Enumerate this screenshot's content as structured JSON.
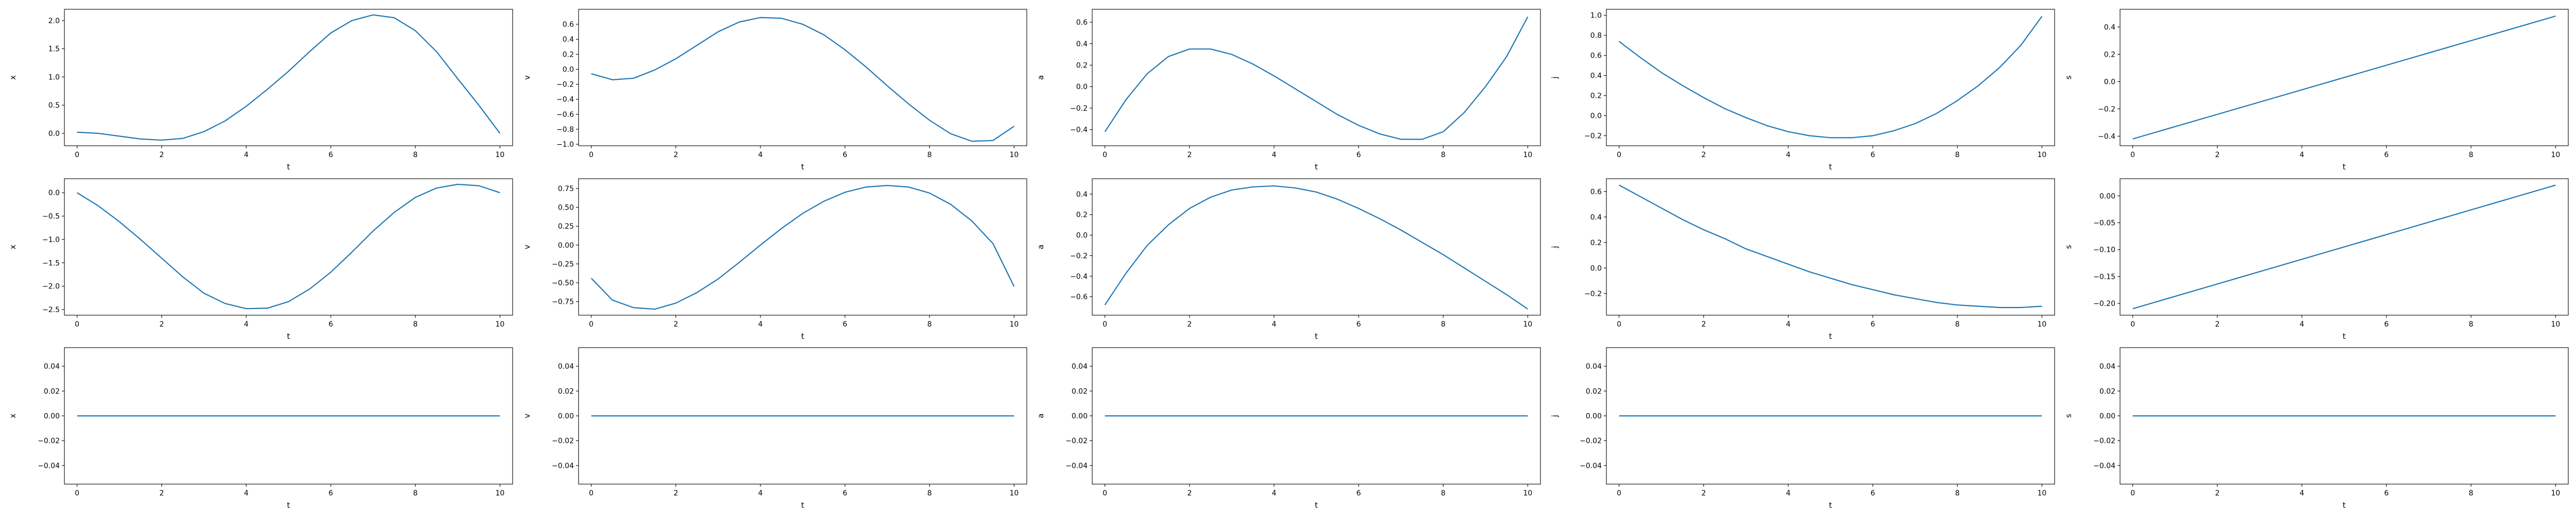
{
  "figure": {
    "background": "#ffffff",
    "line_color": "#1f77b4",
    "spine_color": "#000000"
  },
  "chart_data": [
    {
      "type": "line",
      "row": 1,
      "col": 1,
      "xlabel": "t",
      "ylabel": "x",
      "grid": false,
      "x": [
        0,
        0.5,
        1,
        1.5,
        2,
        2.5,
        3,
        3.5,
        4,
        4.5,
        5,
        5.5,
        6,
        6.5,
        7,
        7.5,
        8,
        8.5,
        9,
        9.5,
        10
      ],
      "y": [
        0.02,
        0.0,
        -0.05,
        -0.1,
        -0.12,
        -0.09,
        0.03,
        0.22,
        0.48,
        0.78,
        1.1,
        1.45,
        1.78,
        2.0,
        2.1,
        2.05,
        1.82,
        1.45,
        0.97,
        0.5,
        0.0
      ],
      "xlim": [
        -0.3,
        10.3
      ],
      "ylim": [
        -0.22,
        2.2
      ],
      "xticks": [
        0,
        2,
        4,
        6,
        8,
        10
      ],
      "xtick_labels": [
        "0",
        "2",
        "4",
        "6",
        "8",
        "10"
      ],
      "yticks": [
        0,
        0.5,
        1,
        1.5,
        2
      ],
      "ytick_labels": [
        "0.0",
        "0.5",
        "1.0",
        "1.5",
        "2.0"
      ]
    },
    {
      "type": "line",
      "row": 1,
      "col": 2,
      "xlabel": "t",
      "ylabel": "v",
      "grid": false,
      "x": [
        0,
        0.5,
        1,
        1.5,
        2,
        2.5,
        3,
        3.5,
        4,
        4.5,
        5,
        5.5,
        6,
        6.5,
        7,
        7.5,
        8,
        8.5,
        9,
        9.5,
        10
      ],
      "y": [
        -0.06,
        -0.14,
        -0.12,
        -0.01,
        0.14,
        0.32,
        0.5,
        0.63,
        0.69,
        0.68,
        0.6,
        0.46,
        0.26,
        0.03,
        -0.22,
        -0.46,
        -0.68,
        -0.86,
        -0.96,
        -0.95,
        -0.76
      ],
      "xlim": [
        -0.3,
        10.3
      ],
      "ylim": [
        -1.02,
        0.8
      ],
      "xticks": [
        0,
        2,
        4,
        6,
        8,
        10
      ],
      "xtick_labels": [
        "0",
        "2",
        "4",
        "6",
        "8",
        "10"
      ],
      "yticks": [
        -1.0,
        -0.8,
        -0.6,
        -0.4,
        -0.2,
        0.0,
        0.2,
        0.4,
        0.6
      ],
      "ytick_labels": [
        "−1.0",
        "−0.8",
        "−0.6",
        "−0.4",
        "−0.2",
        "0.0",
        "0.2",
        "0.4",
        "0.6"
      ]
    },
    {
      "type": "line",
      "row": 1,
      "col": 3,
      "xlabel": "t",
      "ylabel": "a",
      "grid": false,
      "x": [
        0,
        0.5,
        1,
        1.5,
        2,
        2.5,
        3,
        3.5,
        4,
        4.5,
        5,
        5.5,
        6,
        6.5,
        7,
        7.5,
        8,
        8.5,
        9,
        9.5,
        10
      ],
      "y": [
        -0.42,
        -0.12,
        0.12,
        0.28,
        0.35,
        0.35,
        0.3,
        0.21,
        0.1,
        -0.02,
        -0.14,
        -0.26,
        -0.36,
        -0.44,
        -0.49,
        -0.49,
        -0.42,
        -0.24,
        0.0,
        0.28,
        0.65
      ],
      "xlim": [
        -0.3,
        10.3
      ],
      "ylim": [
        -0.55,
        0.72
      ],
      "xticks": [
        0,
        2,
        4,
        6,
        8,
        10
      ],
      "xtick_labels": [
        "0",
        "2",
        "4",
        "6",
        "8",
        "10"
      ],
      "yticks": [
        -0.4,
        -0.2,
        0.0,
        0.2,
        0.4,
        0.6
      ],
      "ytick_labels": [
        "−0.4",
        "−0.2",
        "0.0",
        "0.2",
        "0.4",
        "0.6"
      ]
    },
    {
      "type": "line",
      "row": 1,
      "col": 4,
      "xlabel": "t",
      "ylabel": "j",
      "grid": false,
      "x": [
        0,
        0.5,
        1,
        1.5,
        2,
        2.5,
        3,
        3.5,
        4,
        4.5,
        5,
        5.5,
        6,
        6.5,
        7,
        7.5,
        8,
        8.5,
        9,
        9.5,
        10
      ],
      "y": [
        0.74,
        0.58,
        0.43,
        0.3,
        0.18,
        0.07,
        -0.02,
        -0.1,
        -0.16,
        -0.2,
        -0.22,
        -0.22,
        -0.2,
        -0.15,
        -0.08,
        0.02,
        0.15,
        0.3,
        0.48,
        0.7,
        0.99
      ],
      "xlim": [
        -0.3,
        10.3
      ],
      "ylim": [
        -0.3,
        1.06
      ],
      "xticks": [
        0,
        2,
        4,
        6,
        8,
        10
      ],
      "xtick_labels": [
        "0",
        "2",
        "4",
        "6",
        "8",
        "10"
      ],
      "yticks": [
        -0.2,
        0.0,
        0.2,
        0.4,
        0.6,
        0.8,
        1.0
      ],
      "ytick_labels": [
        "−0.2",
        "0.0",
        "0.2",
        "0.4",
        "0.6",
        "0.8",
        "1.0"
      ]
    },
    {
      "type": "line",
      "row": 1,
      "col": 5,
      "xlabel": "t",
      "ylabel": "s",
      "grid": false,
      "x": [
        0,
        10
      ],
      "y": [
        -0.42,
        0.48
      ],
      "xlim": [
        -0.3,
        10.3
      ],
      "ylim": [
        -0.47,
        0.53
      ],
      "xticks": [
        0,
        2,
        4,
        6,
        8,
        10
      ],
      "xtick_labels": [
        "0",
        "2",
        "4",
        "6",
        "8",
        "10"
      ],
      "yticks": [
        -0.4,
        -0.2,
        0.0,
        0.2,
        0.4
      ],
      "ytick_labels": [
        "−0.4",
        "−0.2",
        "0.0",
        "0.2",
        "0.4"
      ]
    },
    {
      "type": "line",
      "row": 2,
      "col": 1,
      "xlabel": "t",
      "ylabel": "x",
      "grid": false,
      "x": [
        0,
        0.5,
        1,
        1.5,
        2,
        2.5,
        3,
        3.5,
        4,
        4.5,
        5,
        5.5,
        6,
        6.5,
        7,
        7.5,
        8,
        8.5,
        9,
        9.5,
        10
      ],
      "y": [
        0.0,
        -0.28,
        -0.62,
        -1.0,
        -1.4,
        -1.8,
        -2.15,
        -2.37,
        -2.48,
        -2.47,
        -2.33,
        -2.06,
        -1.7,
        -1.27,
        -0.82,
        -0.42,
        -0.1,
        0.1,
        0.18,
        0.15,
        0.0
      ],
      "xlim": [
        -0.3,
        10.3
      ],
      "ylim": [
        -2.62,
        0.3
      ],
      "xticks": [
        0,
        2,
        4,
        6,
        8,
        10
      ],
      "xtick_labels": [
        "0",
        "2",
        "4",
        "6",
        "8",
        "10"
      ],
      "yticks": [
        -2.5,
        -2.0,
        -1.5,
        -1.0,
        -0.5,
        0.0
      ],
      "ytick_labels": [
        "−2.5",
        "−2.0",
        "−1.5",
        "−1.0",
        "−0.5",
        "0.0"
      ]
    },
    {
      "type": "line",
      "row": 2,
      "col": 2,
      "xlabel": "t",
      "ylabel": "v",
      "grid": false,
      "x": [
        0,
        0.5,
        1,
        1.5,
        2,
        2.5,
        3,
        3.5,
        4,
        4.5,
        5,
        5.5,
        6,
        6.5,
        7,
        7.5,
        8,
        8.5,
        9,
        9.5,
        10
      ],
      "y": [
        -0.44,
        -0.73,
        -0.83,
        -0.85,
        -0.77,
        -0.63,
        -0.45,
        -0.23,
        0.0,
        0.22,
        0.42,
        0.58,
        0.7,
        0.77,
        0.79,
        0.77,
        0.69,
        0.54,
        0.32,
        0.02,
        -0.55
      ],
      "xlim": [
        -0.3,
        10.3
      ],
      "ylim": [
        -0.93,
        0.88
      ],
      "xticks": [
        0,
        2,
        4,
        6,
        8,
        10
      ],
      "xtick_labels": [
        "0",
        "2",
        "4",
        "6",
        "8",
        "10"
      ],
      "yticks": [
        -0.75,
        -0.5,
        -0.25,
        0.0,
        0.25,
        0.5,
        0.75
      ],
      "ytick_labels": [
        "−0.75",
        "−0.50",
        "−0.25",
        "0.00",
        "0.25",
        "0.50",
        "0.75"
      ]
    },
    {
      "type": "line",
      "row": 2,
      "col": 3,
      "xlabel": "t",
      "ylabel": "a",
      "grid": false,
      "x": [
        0,
        0.5,
        1,
        1.5,
        2,
        2.5,
        3,
        3.5,
        4,
        4.5,
        5,
        5.5,
        6,
        6.5,
        7,
        7.5,
        8,
        8.5,
        9,
        9.5,
        10
      ],
      "y": [
        -0.68,
        -0.37,
        -0.1,
        0.1,
        0.26,
        0.37,
        0.44,
        0.47,
        0.48,
        0.46,
        0.42,
        0.35,
        0.26,
        0.16,
        0.05,
        -0.07,
        -0.19,
        -0.32,
        -0.45,
        -0.58,
        -0.72
      ],
      "xlim": [
        -0.3,
        10.3
      ],
      "ylim": [
        -0.78,
        0.55
      ],
      "xticks": [
        0,
        2,
        4,
        6,
        8,
        10
      ],
      "xtick_labels": [
        "0",
        "2",
        "4",
        "6",
        "8",
        "10"
      ],
      "yticks": [
        -0.6,
        -0.4,
        -0.2,
        0.0,
        0.2,
        0.4
      ],
      "ytick_labels": [
        "−0.6",
        "−0.4",
        "−0.2",
        "0.0",
        "0.2",
        "0.4"
      ]
    },
    {
      "type": "line",
      "row": 2,
      "col": 4,
      "xlabel": "t",
      "ylabel": "j",
      "grid": false,
      "x": [
        0,
        0.5,
        1,
        1.5,
        2,
        2.5,
        3,
        3.5,
        4,
        4.5,
        5,
        5.5,
        6,
        6.5,
        7,
        7.5,
        8,
        8.5,
        9,
        9.5,
        10
      ],
      "y": [
        0.65,
        0.56,
        0.47,
        0.38,
        0.3,
        0.23,
        0.15,
        0.09,
        0.03,
        -0.03,
        -0.08,
        -0.13,
        -0.17,
        -0.21,
        -0.24,
        -0.27,
        -0.29,
        -0.3,
        -0.31,
        -0.31,
        -0.3
      ],
      "xlim": [
        -0.3,
        10.3
      ],
      "ylim": [
        -0.37,
        0.7
      ],
      "xticks": [
        0,
        2,
        4,
        6,
        8,
        10
      ],
      "xtick_labels": [
        "0",
        "2",
        "4",
        "6",
        "8",
        "10"
      ],
      "yticks": [
        -0.2,
        0.0,
        0.2,
        0.4,
        0.6
      ],
      "ytick_labels": [
        "−0.2",
        "0.0",
        "0.2",
        "0.4",
        "0.6"
      ]
    },
    {
      "type": "line",
      "row": 2,
      "col": 5,
      "xlabel": "t",
      "ylabel": "s",
      "grid": false,
      "x": [
        0,
        10
      ],
      "y": [
        -0.21,
        0.02
      ],
      "xlim": [
        -0.3,
        10.3
      ],
      "ylim": [
        -0.222,
        0.032
      ],
      "xticks": [
        0,
        2,
        4,
        6,
        8,
        10
      ],
      "xtick_labels": [
        "0",
        "2",
        "4",
        "6",
        "8",
        "10"
      ],
      "yticks": [
        -0.2,
        -0.15,
        -0.1,
        -0.05,
        0.0
      ],
      "ytick_labels": [
        "−0.20",
        "−0.15",
        "−0.10",
        "−0.05",
        "0.00"
      ]
    },
    {
      "type": "line",
      "row": 3,
      "col": 1,
      "xlabel": "t",
      "ylabel": "x",
      "grid": false,
      "x": [
        0,
        10
      ],
      "y": [
        0,
        0
      ],
      "xlim": [
        -0.3,
        10.3
      ],
      "ylim": [
        -0.055,
        0.055
      ],
      "xticks": [
        0,
        2,
        4,
        6,
        8,
        10
      ],
      "xtick_labels": [
        "0",
        "2",
        "4",
        "6",
        "8",
        "10"
      ],
      "yticks": [
        -0.04,
        -0.02,
        0.0,
        0.02,
        0.04
      ],
      "ytick_labels": [
        "−0.04",
        "−0.02",
        "0.00",
        "0.02",
        "0.04"
      ]
    },
    {
      "type": "line",
      "row": 3,
      "col": 2,
      "xlabel": "t",
      "ylabel": "v",
      "grid": false,
      "x": [
        0,
        10
      ],
      "y": [
        0,
        0
      ],
      "xlim": [
        -0.3,
        10.3
      ],
      "ylim": [
        -0.055,
        0.055
      ],
      "xticks": [
        0,
        2,
        4,
        6,
        8,
        10
      ],
      "xtick_labels": [
        "0",
        "2",
        "4",
        "6",
        "8",
        "10"
      ],
      "yticks": [
        -0.04,
        -0.02,
        0.0,
        0.02,
        0.04
      ],
      "ytick_labels": [
        "−0.04",
        "−0.02",
        "0.00",
        "0.02",
        "0.04"
      ]
    },
    {
      "type": "line",
      "row": 3,
      "col": 3,
      "xlabel": "t",
      "ylabel": "a",
      "grid": false,
      "x": [
        0,
        10
      ],
      "y": [
        0,
        0
      ],
      "xlim": [
        -0.3,
        10.3
      ],
      "ylim": [
        -0.055,
        0.055
      ],
      "xticks": [
        0,
        2,
        4,
        6,
        8,
        10
      ],
      "xtick_labels": [
        "0",
        "2",
        "4",
        "6",
        "8",
        "10"
      ],
      "yticks": [
        -0.04,
        -0.02,
        0.0,
        0.02,
        0.04
      ],
      "ytick_labels": [
        "−0.04",
        "−0.02",
        "0.00",
        "0.02",
        "0.04"
      ]
    },
    {
      "type": "line",
      "row": 3,
      "col": 4,
      "xlabel": "t",
      "ylabel": "j",
      "grid": false,
      "x": [
        0,
        10
      ],
      "y": [
        0,
        0
      ],
      "xlim": [
        -0.3,
        10.3
      ],
      "ylim": [
        -0.055,
        0.055
      ],
      "xticks": [
        0,
        2,
        4,
        6,
        8,
        10
      ],
      "xtick_labels": [
        "0",
        "2",
        "4",
        "6",
        "8",
        "10"
      ],
      "yticks": [
        -0.04,
        -0.02,
        0.0,
        0.02,
        0.04
      ],
      "ytick_labels": [
        "−0.04",
        "−0.02",
        "0.00",
        "0.02",
        "0.04"
      ]
    },
    {
      "type": "line",
      "row": 3,
      "col": 5,
      "xlabel": "t",
      "ylabel": "s",
      "grid": false,
      "x": [
        0,
        10
      ],
      "y": [
        0,
        0
      ],
      "xlim": [
        -0.3,
        10.3
      ],
      "ylim": [
        -0.055,
        0.055
      ],
      "xticks": [
        0,
        2,
        4,
        6,
        8,
        10
      ],
      "xtick_labels": [
        "0",
        "2",
        "4",
        "6",
        "8",
        "10"
      ],
      "yticks": [
        -0.04,
        -0.02,
        0.0,
        0.02,
        0.04
      ],
      "ytick_labels": [
        "−0.04",
        "−0.02",
        "0.00",
        "0.02",
        "0.04"
      ]
    }
  ]
}
